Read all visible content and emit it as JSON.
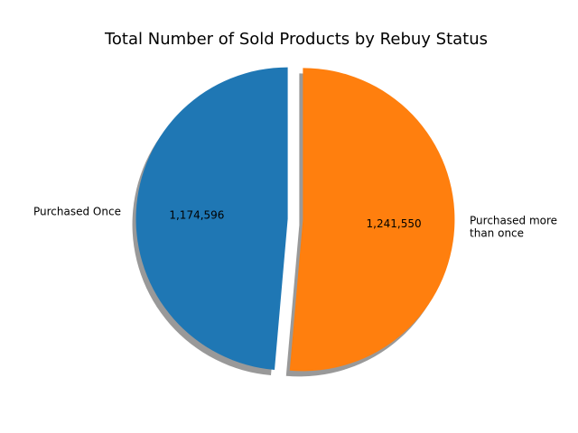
{
  "chart_data": {
    "type": "pie",
    "title": "Total Number of Sold Products by Rebuy Status",
    "categories": [
      "Purchased Once",
      "Purchased more\nthan once"
    ],
    "values": [
      1174596,
      1241550
    ],
    "value_labels": [
      "1,174,596",
      "1,241,550"
    ],
    "colors": [
      "#1f77b4",
      "#ff7f0e"
    ],
    "start_angle_deg": 90,
    "direction": "counterclockwise",
    "explode": [
      0.05,
      0.05
    ],
    "shadow": true,
    "legend": "none"
  }
}
